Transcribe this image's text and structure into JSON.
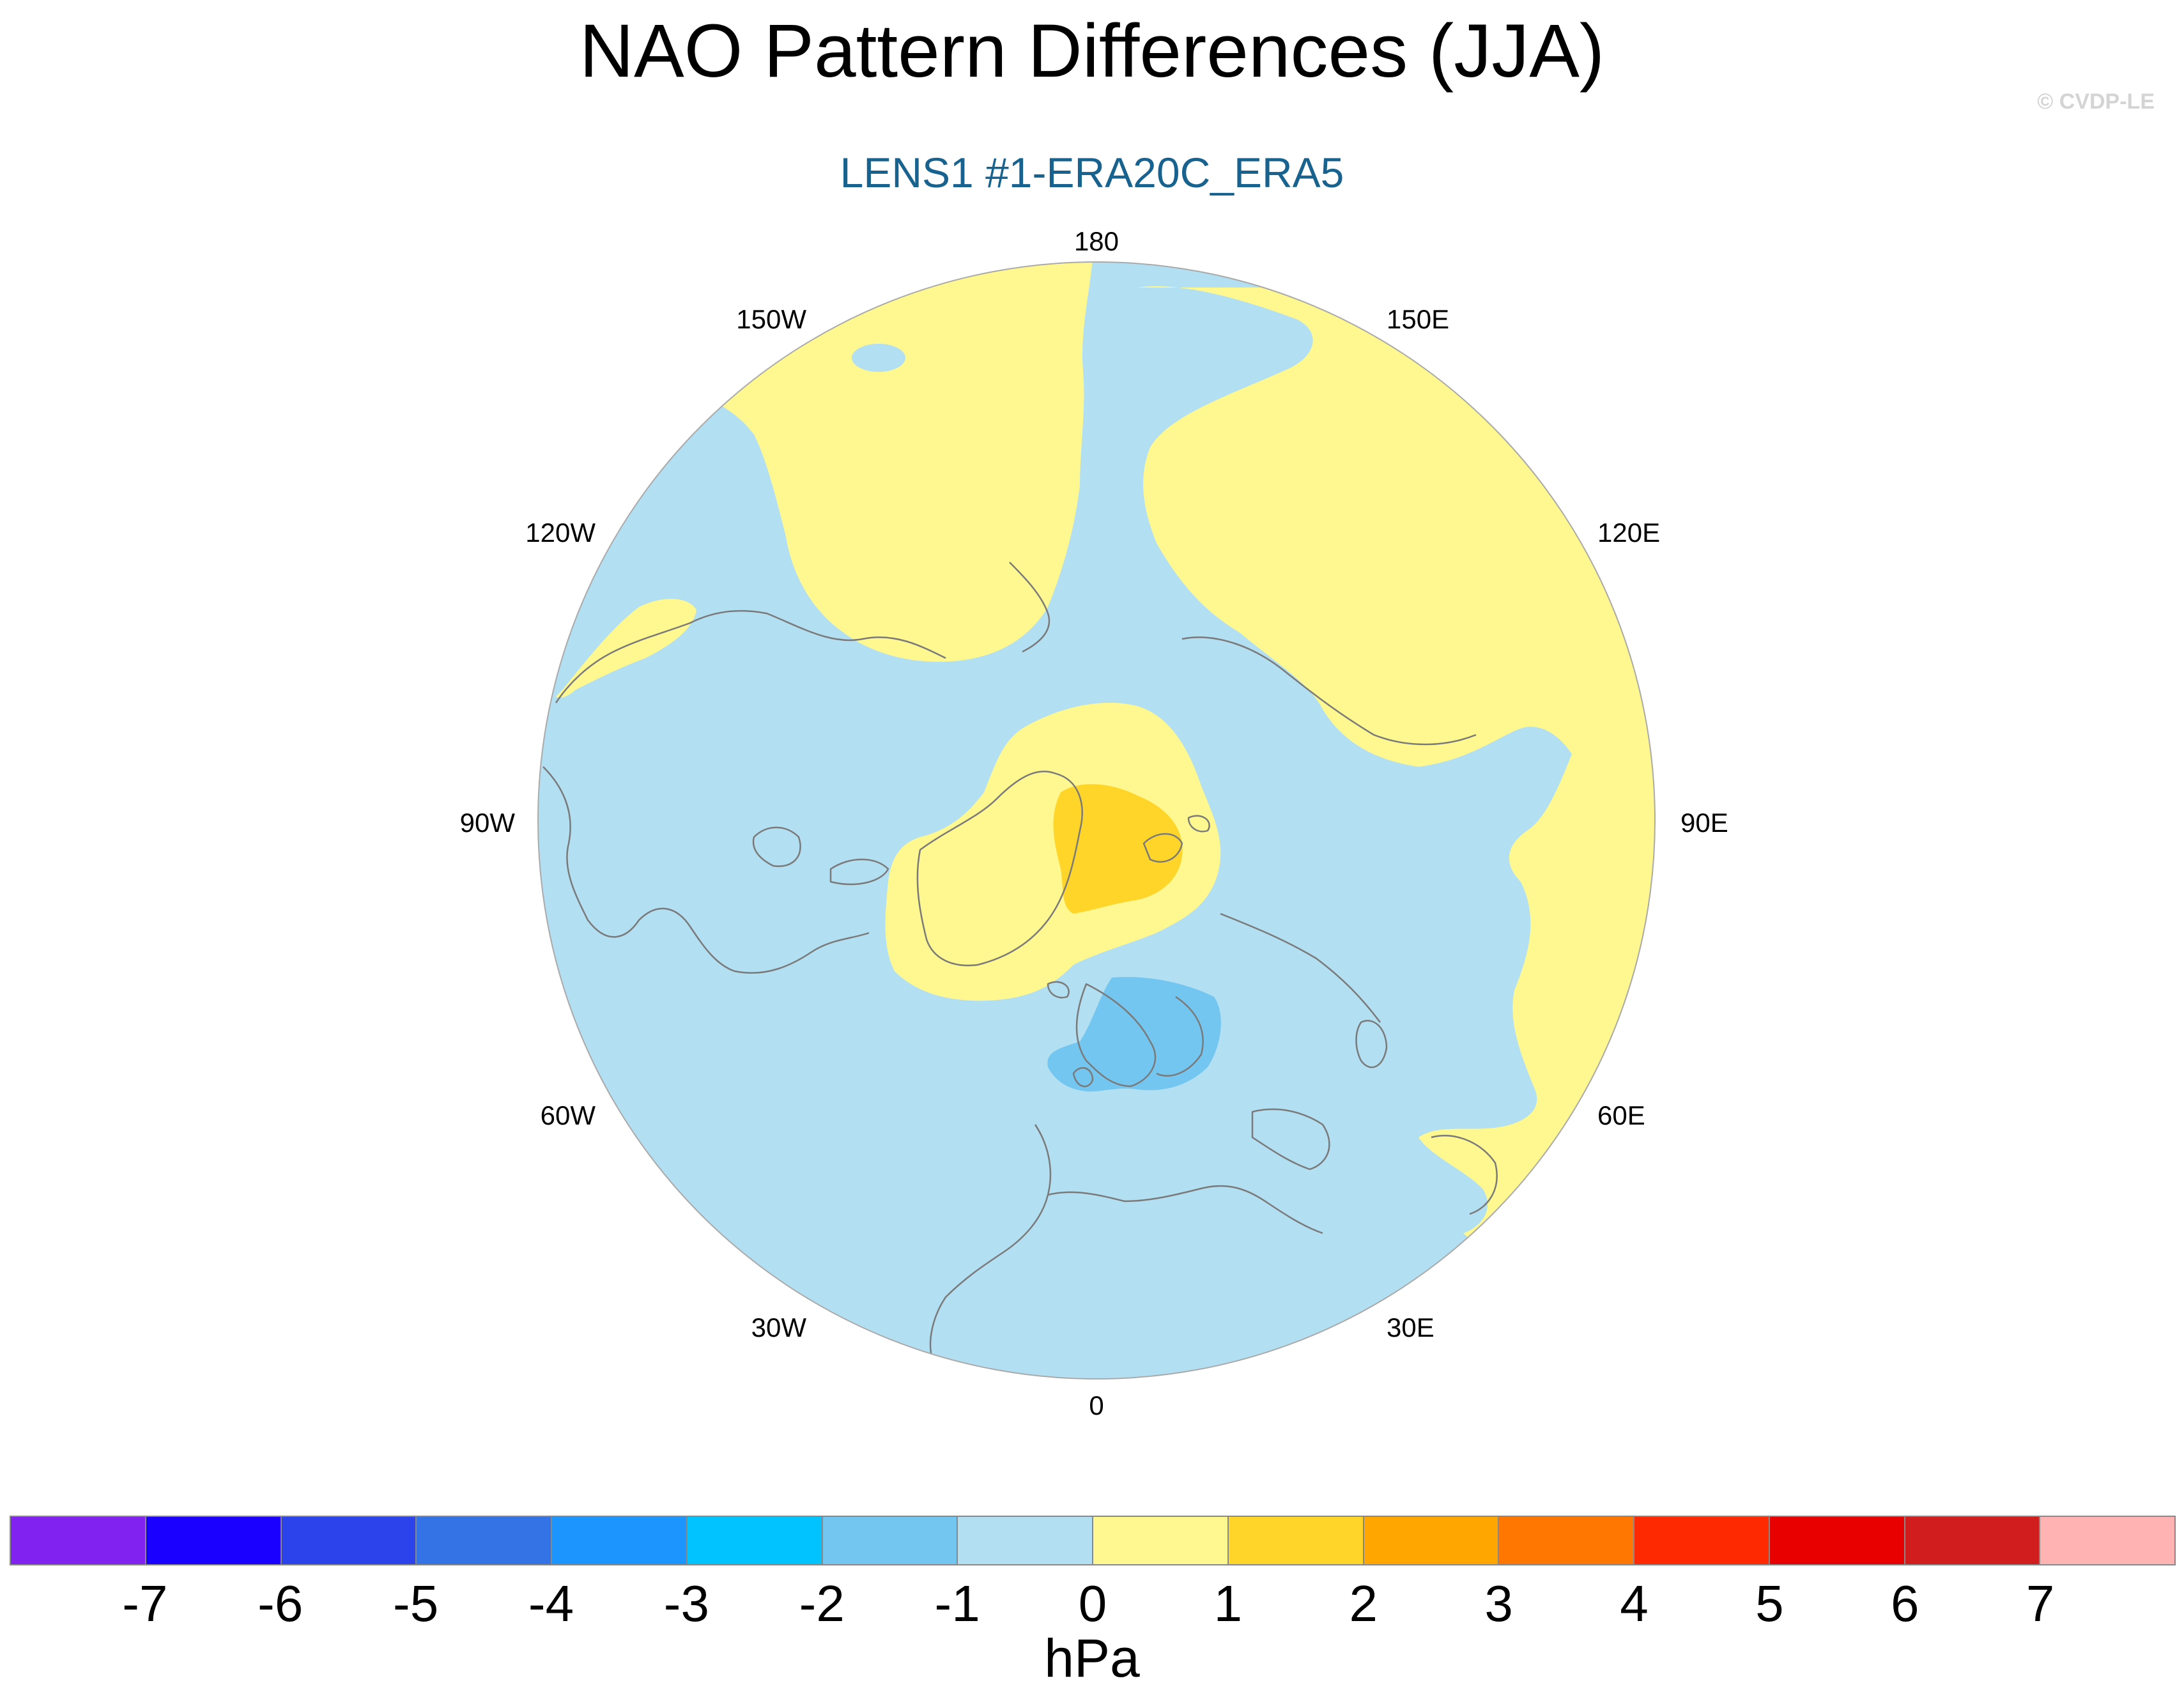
{
  "title": "NAO Pattern Differences (JJA)",
  "subtitle": "LENS1 #1-ERA20C_ERA5",
  "copyright": "© CVDP-LE",
  "map": {
    "projection": "north-polar-stereographic",
    "longitude_labels": [
      "180",
      "150E",
      "120E",
      "90E",
      "60E",
      "30E",
      "0",
      "30W",
      "60W",
      "90W",
      "120W",
      "150W"
    ],
    "fill_colors": {
      "ocean_background": "#b3dff2",
      "positive_0_1": "#fff78f",
      "positive_1_2": "#ffd529",
      "negative_2_1": "#73c6f0",
      "coastline": "#7a7a7a"
    },
    "features": [
      {
        "name": "positive anomaly over Arctic / Greenland",
        "range_hPa": [
          0,
          1
        ]
      },
      {
        "name": "core maximum near Greenland Sea",
        "range_hPa": [
          1,
          2
        ]
      },
      {
        "name": "negative anomaly over Scandinavia / North Sea",
        "range_hPa": [
          -2,
          -1
        ]
      },
      {
        "name": "positive anomaly over Siberia / Asia",
        "range_hPa": [
          0,
          1
        ]
      },
      {
        "name": "positive anomaly over North Pacific / Alaska",
        "range_hPa": [
          0,
          1
        ]
      }
    ]
  },
  "colorbar": {
    "units": "hPa",
    "tick_labels": [
      "-7",
      "-6",
      "-5",
      "-4",
      "-3",
      "-2",
      "-1",
      "0",
      "1",
      "2",
      "3",
      "4",
      "5",
      "6",
      "7"
    ],
    "colors": [
      "#8122f0",
      "#1a00ff",
      "#2c42ea",
      "#3373e6",
      "#1c95ff",
      "#00c3ff",
      "#73c6f0",
      "#b3dff2",
      "#fff78f",
      "#ffd529",
      "#ffa600",
      "#ff7700",
      "#ff2900",
      "#e80000",
      "#d11d1d",
      "#ffb3b3"
    ]
  }
}
